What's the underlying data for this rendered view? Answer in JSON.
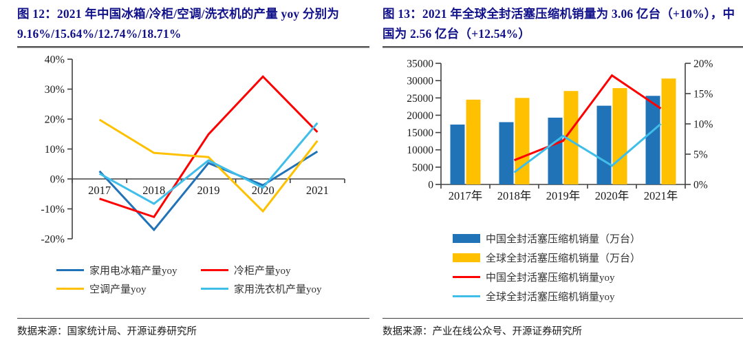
{
  "colors": {
    "title_navy": "#11118A",
    "axis_gray": "#404040",
    "china_blue": "#2173B8",
    "red": "#FE0000",
    "gold": "#FFC000",
    "sky_blue": "#3FBEEA"
  },
  "figures": [
    {
      "title": "图 12：2021 年中国冰箱/冷柜/空调/洗衣机的产量 yoy 分别为 9.16%/15.64%/12.74%/18.71%",
      "source": "数据来源：国家统计局、开源证券研究所"
    },
    {
      "title": "图 13：2021 年全球全封活塞压缩机销量为 3.06 亿台（+10%），中国为 2.56 亿台（+12.54%）",
      "source": "数据来源：产业在线公众号、开源证券研究所"
    }
  ],
  "chart_data": [
    {
      "type": "line",
      "categories": [
        "2017",
        "2018",
        "2019",
        "2020",
        "2021"
      ],
      "ylim": [
        -20,
        40
      ],
      "ytick_values": [
        40,
        30,
        20,
        10,
        0,
        -10,
        -20
      ],
      "ytick_labels": [
        "40%",
        "30%",
        "20%",
        "10%",
        "0%",
        "-10%",
        "-20%"
      ],
      "grid": false,
      "legend_position": "bottom",
      "series": [
        {
          "name": "家用电冰箱产量yoy",
          "color": "#2173B8",
          "values": [
            2.6,
            -17.0,
            5.3,
            -2.1,
            9.16
          ]
        },
        {
          "name": "冷柜产量yoy",
          "color": "#FE0000",
          "values": [
            -6.6,
            -12.7,
            14.9,
            34.2,
            15.64
          ]
        },
        {
          "name": "空调产量yoy",
          "color": "#FFC000",
          "values": [
            19.8,
            8.7,
            7.3,
            -10.8,
            12.74
          ]
        },
        {
          "name": "家用洗衣机产量yoy",
          "color": "#3FBEEA",
          "values": [
            1.8,
            -8.3,
            6.2,
            -2.9,
            18.71
          ]
        }
      ]
    },
    {
      "type": "combo_bar_line",
      "categories": [
        "2017年",
        "2018年",
        "2019年",
        "2020年",
        "2021年"
      ],
      "left_axis": {
        "lim": [
          0,
          35000
        ],
        "tick_values": [
          0,
          5000,
          10000,
          15000,
          20000,
          25000,
          30000,
          35000
        ],
        "tick_labels": [
          "0",
          "5000",
          "10000",
          "15000",
          "20000",
          "25000",
          "30000",
          "35000"
        ]
      },
      "right_axis": {
        "lim": [
          0,
          20
        ],
        "tick_values": [
          0,
          5,
          10,
          15,
          20
        ],
        "tick_labels": [
          "0%",
          "5%",
          "10%",
          "15%",
          "20%"
        ]
      },
      "grid": false,
      "legend_position": "bottom",
      "bar_series": [
        {
          "name": "中国全封活塞压缩机销量（万台）",
          "color": "#2173B8",
          "values": [
            17300,
            18000,
            19300,
            22750,
            25600
          ]
        },
        {
          "name": "全球全封活塞压缩机销量（万台）",
          "color": "#FFC000",
          "values": [
            24500,
            25000,
            27000,
            27830,
            30600
          ]
        }
      ],
      "line_series": [
        {
          "name": "中国全封活塞压缩机销量yoy",
          "color": "#FE0000",
          "values": [
            null,
            4.0,
            7.2,
            18.0,
            12.54
          ]
        },
        {
          "name": "全球全封活塞压缩机销量yoy",
          "color": "#3FBEEA",
          "values": [
            null,
            2.0,
            8.0,
            3.1,
            10.0
          ]
        }
      ]
    }
  ]
}
